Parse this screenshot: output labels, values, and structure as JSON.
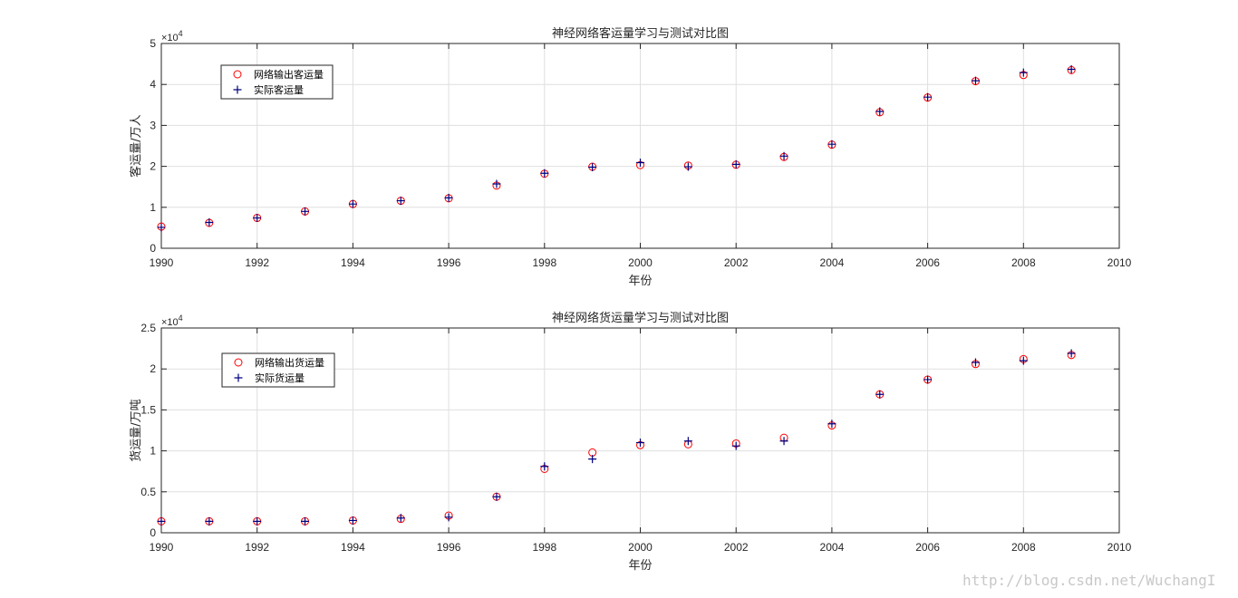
{
  "watermark": "http://blog.csdn.net/WuchangI",
  "colors": {
    "predicted": "#ff0000",
    "actual": "#00007f",
    "grid": "#dfdfdf",
    "axis": "#262626"
  },
  "chart_data": [
    {
      "type": "scatter",
      "title": "神经网络客运量学习与测试对比图",
      "xlabel": "年份",
      "ylabel": "客运量/万人",
      "xlim": [
        1990,
        2010
      ],
      "ylim": [
        0,
        50000
      ],
      "xticks": [
        1990,
        1992,
        1994,
        1996,
        1998,
        2000,
        2002,
        2004,
        2006,
        2008,
        2010
      ],
      "yticks": [
        0,
        10000,
        20000,
        30000,
        40000,
        50000
      ],
      "ytick_labels": [
        "0",
        "1",
        "2",
        "3",
        "4",
        "5"
      ],
      "exponent_base": "×10",
      "exponent_power": "4",
      "grid": true,
      "legend_position": "top-left",
      "x": [
        1990,
        1991,
        1992,
        1993,
        1994,
        1995,
        1996,
        1997,
        1998,
        1999,
        2000,
        2001,
        2002,
        2003,
        2004,
        2005,
        2006,
        2007,
        2008,
        2009
      ],
      "series": [
        {
          "name": "网络输出客运量",
          "marker": "circle",
          "color": "#ff0000",
          "values": [
            5300,
            6200,
            7400,
            9000,
            10800,
            11600,
            12200,
            15300,
            18200,
            19900,
            20300,
            20200,
            20400,
            22300,
            25300,
            33200,
            36800,
            40800,
            42300,
            43500
          ]
        },
        {
          "name": "实际客运量",
          "marker": "plus",
          "color": "#00007f",
          "values": [
            5100,
            6300,
            7400,
            9000,
            10800,
            11600,
            12300,
            15700,
            18300,
            19800,
            20900,
            19900,
            20500,
            22500,
            25400,
            33400,
            36900,
            40900,
            42900,
            43700
          ]
        }
      ]
    },
    {
      "type": "scatter",
      "title": "神经网络货运量学习与测试对比图",
      "xlabel": "年份",
      "ylabel": "货运量/万吨",
      "xlim": [
        1990,
        2010
      ],
      "ylim": [
        0,
        25000
      ],
      "xticks": [
        1990,
        1992,
        1994,
        1996,
        1998,
        2000,
        2002,
        2004,
        2006,
        2008,
        2010
      ],
      "yticks": [
        0,
        5000,
        10000,
        15000,
        20000,
        25000
      ],
      "ytick_labels": [
        "0",
        "0.5",
        "1",
        "1.5",
        "2",
        "2.5"
      ],
      "exponent_base": "×10",
      "exponent_power": "4",
      "grid": true,
      "legend_position": "top-left",
      "x": [
        1990,
        1991,
        1992,
        1993,
        1994,
        1995,
        1996,
        1997,
        1998,
        1999,
        2000,
        2001,
        2002,
        2003,
        2004,
        2005,
        2006,
        2007,
        2008,
        2009
      ],
      "series": [
        {
          "name": "网络输出货运量",
          "marker": "circle",
          "color": "#ff0000",
          "values": [
            1400,
            1400,
            1400,
            1400,
            1500,
            1700,
            2100,
            4400,
            7800,
            9800,
            10700,
            10800,
            10900,
            11600,
            13100,
            16900,
            18700,
            20600,
            21200,
            21700
          ]
        },
        {
          "name": "实际货运量",
          "marker": "plus",
          "color": "#00007f",
          "values": [
            1400,
            1400,
            1400,
            1400,
            1500,
            1800,
            1900,
            4400,
            8100,
            9000,
            11000,
            11200,
            10600,
            11200,
            13300,
            16900,
            18700,
            20800,
            21000,
            21900
          ]
        }
      ]
    }
  ]
}
